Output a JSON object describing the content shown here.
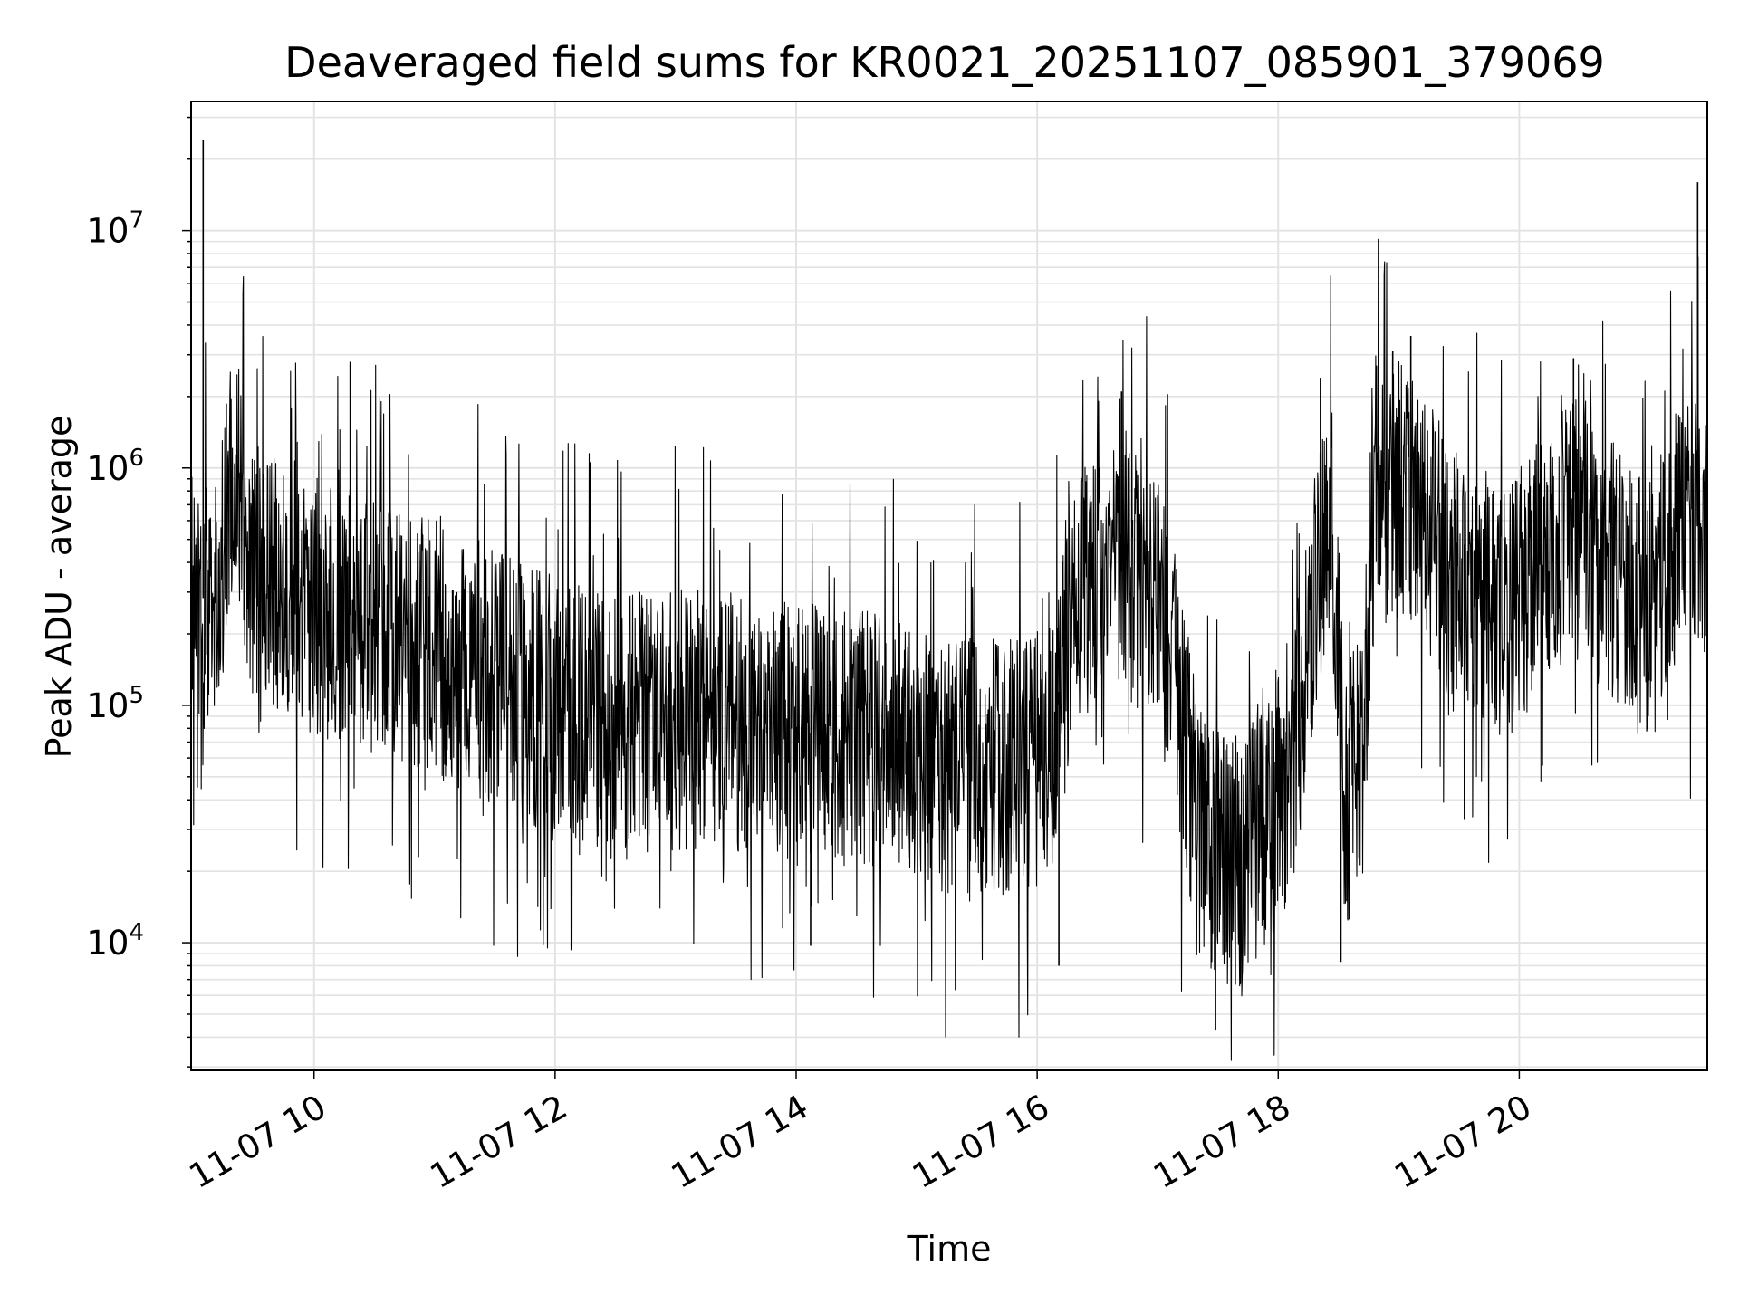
{
  "chart_data": {
    "type": "line",
    "title": "Deaveraged field sums for KR0021_20251107_085901_379069",
    "xlabel": "Time",
    "ylabel": "Peak ADU - average",
    "y_scale": "log",
    "ylim": [
      2900,
      35000000
    ],
    "x_range_hours": [
      8.98,
      21.56
    ],
    "grid": true,
    "color": "#000000",
    "x_ticks": [
      {
        "hour": 10,
        "label": "11-07 10"
      },
      {
        "hour": 12,
        "label": "11-07 12"
      },
      {
        "hour": 14,
        "label": "11-07 14"
      },
      {
        "hour": 16,
        "label": "11-07 16"
      },
      {
        "hour": 18,
        "label": "11-07 18"
      },
      {
        "hour": 20,
        "label": "11-07 20"
      }
    ],
    "y_ticks": [
      {
        "value": 10000,
        "base": "10",
        "exp": "4"
      },
      {
        "value": 100000,
        "base": "10",
        "exp": "5"
      },
      {
        "value": 1000000,
        "base": "10",
        "exp": "6"
      },
      {
        "value": 10000000,
        "base": "10",
        "exp": "7"
      }
    ],
    "series": [
      {
        "baseline": [
          [
            8.98,
            300000
          ],
          [
            9.1,
            280000
          ],
          [
            9.2,
            230000
          ],
          [
            9.3,
            900000
          ],
          [
            9.35,
            1000000
          ],
          [
            9.45,
            400000
          ],
          [
            9.8,
            270000
          ],
          [
            10.3,
            240000
          ],
          [
            10.8,
            190000
          ],
          [
            11.3,
            150000
          ],
          [
            11.8,
            110000
          ],
          [
            12.3,
            90000
          ],
          [
            12.8,
            85000
          ],
          [
            13.3,
            90000
          ],
          [
            13.8,
            80000
          ],
          [
            14.3,
            75000
          ],
          [
            14.8,
            70000
          ],
          [
            15.3,
            55000
          ],
          [
            15.8,
            55000
          ],
          [
            16.1,
            60000
          ],
          [
            16.25,
            200000
          ],
          [
            16.5,
            400000
          ],
          [
            16.8,
            350000
          ],
          [
            17.0,
            300000
          ],
          [
            17.1,
            200000
          ],
          [
            17.2,
            80000
          ],
          [
            17.35,
            30000
          ],
          [
            17.6,
            20000
          ],
          [
            17.9,
            35000
          ],
          [
            18.1,
            50000
          ],
          [
            18.3,
            300000
          ],
          [
            18.45,
            500000
          ],
          [
            18.55,
            40000
          ],
          [
            18.7,
            60000
          ],
          [
            18.8,
            900000
          ],
          [
            19.0,
            800000
          ],
          [
            19.3,
            500000
          ],
          [
            19.6,
            300000
          ],
          [
            19.9,
            250000
          ],
          [
            20.2,
            400000
          ],
          [
            20.5,
            600000
          ],
          [
            20.8,
            350000
          ],
          [
            21.1,
            250000
          ],
          [
            21.3,
            500000
          ],
          [
            21.56,
            600000
          ]
        ],
        "spikes": [
          [
            9.08,
            24000000
          ],
          [
            10.3,
            2800000
          ],
          [
            21.48,
            16000000
          ],
          [
            19.1,
            3600000
          ],
          [
            18.95,
            3100000
          ],
          [
            16.7,
            2100000
          ],
          [
            18.35,
            2400000
          ],
          [
            20.45,
            2900000
          ],
          [
            17.48,
            4300
          ],
          [
            18.52,
            8300
          ],
          [
            14.12,
            9700
          ],
          [
            16.18,
            8000
          ]
        ]
      }
    ]
  }
}
